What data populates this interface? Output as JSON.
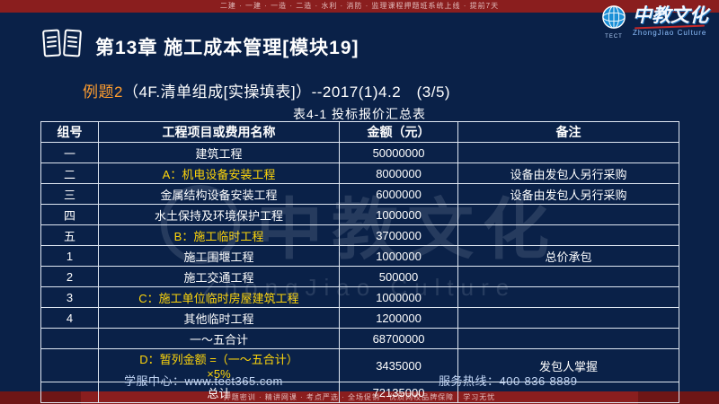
{
  "top_bar": {
    "text": "二建 · 一建 · 一造 · 二造 · 水利 · 消防 · 监理课程押题班系统上线 · 提前7天"
  },
  "bottom_bar": {
    "text": "押题密训 · 精讲网课 · 考点严选 · 全场促销 · 优质网校品牌保障 · 学习无忧"
  },
  "logo": {
    "cn": "中教文化",
    "en": "ZhongJiao Culture",
    "badge": "TECT"
  },
  "title": {
    "text": "第13章  施工成本管理[模块19]"
  },
  "subtitle": {
    "tag": "例题2",
    "rest": "（4F.清单组成[实操填表]）--2017(1)4.2　(3/5)"
  },
  "table": {
    "title": "表4-1  投标报价汇总表",
    "headers": [
      "组号",
      "工程项目或费用名称",
      "金额（元）",
      "备注"
    ],
    "rows": [
      {
        "no": "一",
        "name": "建筑工程",
        "amount": "50000000",
        "remark": "",
        "highlight": false
      },
      {
        "no": "二",
        "name": "A：机电设备安装工程",
        "amount": "8000000",
        "remark": "设备由发包人另行采购",
        "highlight": true
      },
      {
        "no": "三",
        "name": "金属结构设备安装工程",
        "amount": "6000000",
        "remark": "设备由发包人另行采购",
        "highlight": false
      },
      {
        "no": "四",
        "name": "水土保持及环境保护工程",
        "amount": "1000000",
        "remark": "",
        "highlight": false
      },
      {
        "no": "五",
        "name": "B：施工临时工程",
        "amount": "3700000",
        "remark": "",
        "highlight": true
      },
      {
        "no": "1",
        "name": "施工围堰工程",
        "amount": "1000000",
        "remark": "总价承包",
        "highlight": false
      },
      {
        "no": "2",
        "name": "施工交通工程",
        "amount": "500000",
        "remark": "",
        "highlight": false
      },
      {
        "no": "3",
        "name": "C：施工单位临时房屋建筑工程",
        "amount": "1000000",
        "remark": "",
        "highlight": true
      },
      {
        "no": "4",
        "name": "其他临时工程",
        "amount": "1200000",
        "remark": "",
        "highlight": false
      },
      {
        "no": "",
        "name": "一～五合计",
        "amount": "68700000",
        "remark": "",
        "highlight": false
      },
      {
        "no": "",
        "name": "D：暂列金额 =（一～五合计）",
        "name2": "×5%",
        "amount": "3435000",
        "remark": "发包人掌握",
        "highlight": true
      },
      {
        "no": "",
        "name": "总计",
        "amount": "72135000",
        "remark": "",
        "highlight": false
      }
    ]
  },
  "footer": {
    "left": "学服中心：www.tect365.com",
    "right": "服务热线：400-836-8889"
  },
  "watermark": {
    "cn": "中教文化",
    "en": "ZhongJiao Culture"
  },
  "colors": {
    "background": "#0a2148",
    "bar_red": "#8a1e1e",
    "highlight_yellow": "#ffd60a",
    "tag_orange": "#ff9d2e",
    "border_white": "#dfe7f2",
    "footer_blue": "#c2d6f5"
  }
}
